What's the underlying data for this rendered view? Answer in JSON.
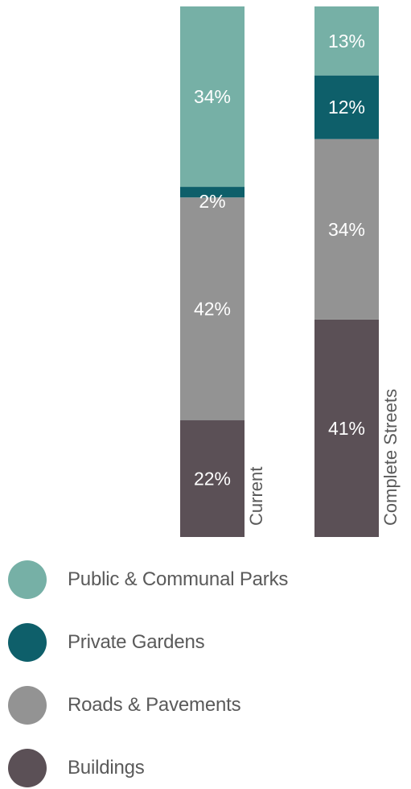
{
  "chart_data": {
    "type": "bar",
    "stacked": true,
    "orientation": "vertical",
    "categories": [
      "Current",
      "Complete Streets"
    ],
    "series": [
      {
        "name": "Buildings",
        "values": [
          22,
          41
        ],
        "labels": [
          "22%",
          "41%"
        ],
        "color": "#5b5056"
      },
      {
        "name": "Roads & Pavements",
        "values": [
          42,
          34
        ],
        "labels": [
          "42%",
          "34%"
        ],
        "color": "#939393"
      },
      {
        "name": "Private Gardens",
        "values": [
          2,
          12
        ],
        "labels": [
          "2%",
          "12%"
        ],
        "color": "#0e5f6a"
      },
      {
        "name": "Public & Communal Parks",
        "values": [
          34,
          13
        ],
        "labels": [
          "34%",
          "13%"
        ],
        "color": "#76b0a6"
      }
    ],
    "ylim": [
      0,
      100
    ],
    "legend": {
      "position": "bottom-left",
      "items": [
        {
          "label": "Public & Communal Parks",
          "color": "#76b0a6"
        },
        {
          "label": "Private Gardens",
          "color": "#0e5f6a"
        },
        {
          "label": "Roads & Pavements",
          "color": "#939393"
        },
        {
          "label": "Buildings",
          "color": "#5b5056"
        }
      ]
    }
  }
}
